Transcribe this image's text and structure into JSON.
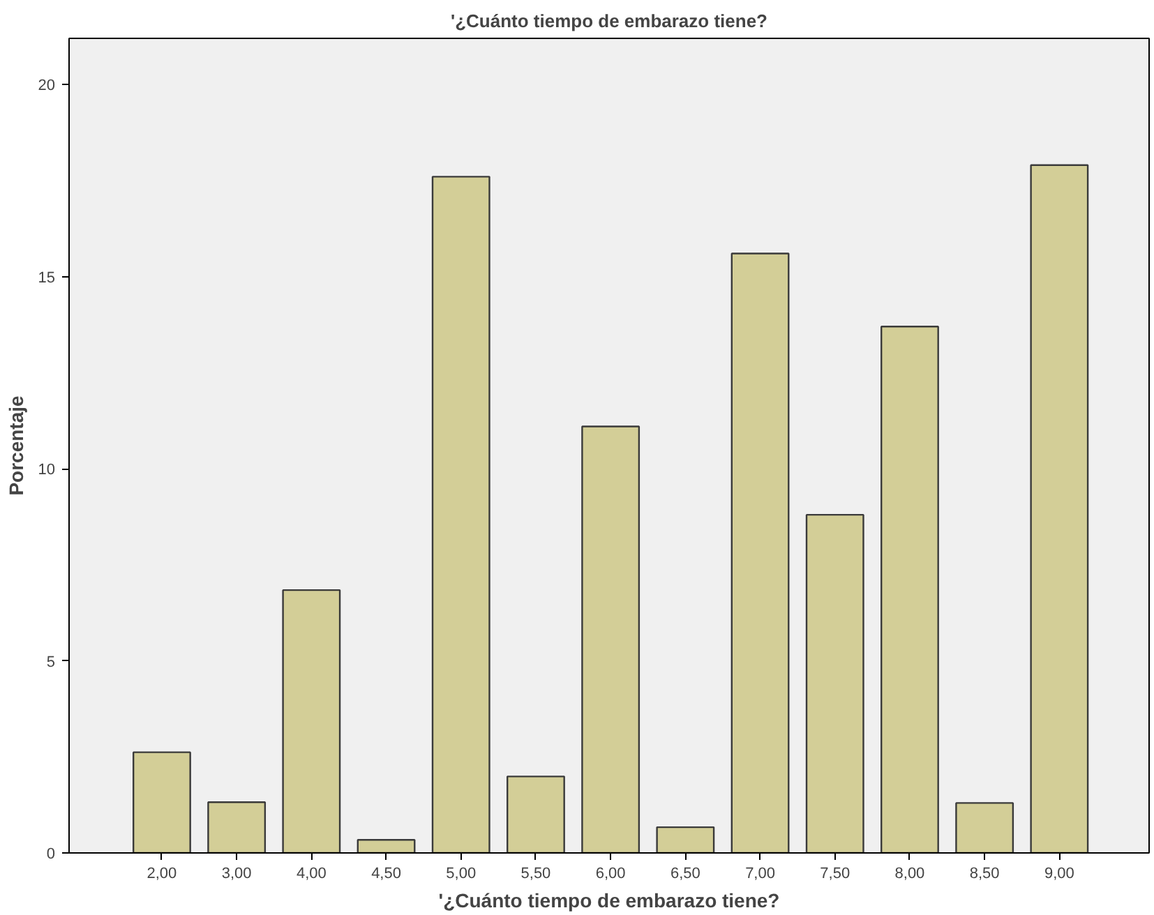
{
  "chart_data": {
    "type": "bar",
    "title": "'¿Cuánto tiempo de embarazo tiene?",
    "xlabel": "'¿Cuánto tiempo de embarazo tiene?",
    "ylabel": "Porcentaje",
    "categories": [
      "2,00",
      "3,00",
      "4,00",
      "4,50",
      "5,00",
      "5,50",
      "6,00",
      "6,50",
      "7,00",
      "7,50",
      "8,00",
      "8,50",
      "9,00"
    ],
    "values": [
      2.62,
      1.32,
      6.84,
      0.34,
      17.6,
      1.99,
      11.1,
      0.67,
      15.6,
      8.8,
      13.7,
      1.3,
      17.9
    ],
    "color": "#d3ce97",
    "ylim": [
      0,
      21.2
    ],
    "yticks": [
      0,
      5,
      10,
      15,
      20
    ],
    "grid": false
  }
}
